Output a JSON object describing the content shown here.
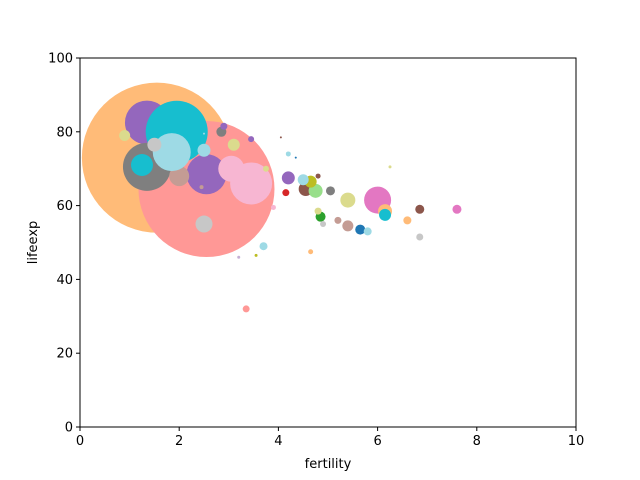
{
  "chart_data": {
    "type": "scatter",
    "xlabel": "fertility",
    "ylabel": "lifeexp",
    "xlim": [
      0,
      10
    ],
    "ylim": [
      0,
      100
    ],
    "xticks": [
      0,
      2,
      4,
      6,
      8,
      10
    ],
    "yticks": [
      0,
      20,
      40,
      60,
      80,
      100
    ],
    "xtick_labels": [
      "0",
      "2",
      "4",
      "6",
      "8",
      "10"
    ],
    "ytick_labels": [
      "0",
      "20",
      "40",
      "60",
      "80",
      "100"
    ],
    "grid": false,
    "legend": "none",
    "size_encoding": "bubble area proportional to a third variable",
    "points": [
      {
        "x": 1.55,
        "y": 73.0,
        "size": 150,
        "color": "#ffbb78"
      },
      {
        "x": 2.55,
        "y": 64.5,
        "size": 136,
        "color": "#ff9896"
      },
      {
        "x": 1.35,
        "y": 82.5,
        "size": 44,
        "color": "#9467bd"
      },
      {
        "x": 1.35,
        "y": 70.5,
        "size": 48,
        "color": "#7f7f7f"
      },
      {
        "x": 1.95,
        "y": 80.0,
        "size": 62,
        "color": "#17becf"
      },
      {
        "x": 2.55,
        "y": 68.5,
        "size": 40,
        "color": "#9467bd"
      },
      {
        "x": 2.0,
        "y": 68.0,
        "size": 20,
        "color": "#c49c94"
      },
      {
        "x": 1.85,
        "y": 74.5,
        "size": 38,
        "color": "#9edae5"
      },
      {
        "x": 1.25,
        "y": 71.0,
        "size": 22,
        "color": "#17becf"
      },
      {
        "x": 1.5,
        "y": 76.5,
        "size": 14,
        "color": "#c7c7c7"
      },
      {
        "x": 2.5,
        "y": 75.0,
        "size": 13,
        "color": "#9edae5"
      },
      {
        "x": 2.5,
        "y": 55.0,
        "size": 17,
        "color": "#c7c7c7"
      },
      {
        "x": 3.45,
        "y": 66.0,
        "size": 42,
        "color": "#f7b6d2"
      },
      {
        "x": 3.05,
        "y": 70.0,
        "size": 26,
        "color": "#f7b6d2"
      },
      {
        "x": 3.1,
        "y": 76.5,
        "size": 12,
        "color": "#dbdb8d"
      },
      {
        "x": 2.85,
        "y": 80.0,
        "size": 10,
        "color": "#7f7f7f"
      },
      {
        "x": 2.9,
        "y": 81.5,
        "size": 7,
        "color": "#9467bd"
      },
      {
        "x": 0.9,
        "y": 79.0,
        "size": 11,
        "color": "#dbdb8d"
      },
      {
        "x": 3.45,
        "y": 78.0,
        "size": 6,
        "color": "#9467bd"
      },
      {
        "x": 4.2,
        "y": 67.5,
        "size": 13,
        "color": "#9467bd"
      },
      {
        "x": 4.15,
        "y": 63.5,
        "size": 7,
        "color": "#d62728"
      },
      {
        "x": 4.55,
        "y": 64.5,
        "size": 14,
        "color": "#8c564b"
      },
      {
        "x": 4.75,
        "y": 64.0,
        "size": 14,
        "color": "#98df8a"
      },
      {
        "x": 4.65,
        "y": 66.5,
        "size": 12,
        "color": "#bcbd22"
      },
      {
        "x": 4.5,
        "y": 67.0,
        "size": 11,
        "color": "#9edae5"
      },
      {
        "x": 5.05,
        "y": 64.0,
        "size": 9,
        "color": "#7f7f7f"
      },
      {
        "x": 5.4,
        "y": 61.5,
        "size": 15,
        "color": "#dbdb8d"
      },
      {
        "x": 6.0,
        "y": 61.5,
        "size": 27,
        "color": "#e377c2"
      },
      {
        "x": 6.15,
        "y": 58.5,
        "size": 14,
        "color": "#ffbb78"
      },
      {
        "x": 6.15,
        "y": 57.5,
        "size": 12,
        "color": "#17becf"
      },
      {
        "x": 5.65,
        "y": 53.5,
        "size": 10,
        "color": "#1f77b4"
      },
      {
        "x": 5.4,
        "y": 54.5,
        "size": 11,
        "color": "#c49c94"
      },
      {
        "x": 5.8,
        "y": 53.0,
        "size": 8,
        "color": "#9edae5"
      },
      {
        "x": 4.85,
        "y": 57.0,
        "size": 10,
        "color": "#2ca02c"
      },
      {
        "x": 4.8,
        "y": 58.5,
        "size": 7,
        "color": "#dbdb8d"
      },
      {
        "x": 4.9,
        "y": 55.0,
        "size": 6,
        "color": "#c7c7c7"
      },
      {
        "x": 5.2,
        "y": 56.0,
        "size": 7,
        "color": "#c49c94"
      },
      {
        "x": 4.8,
        "y": 68.0,
        "size": 5,
        "color": "#8c564b"
      },
      {
        "x": 6.85,
        "y": 59.0,
        "size": 9,
        "color": "#8c564b"
      },
      {
        "x": 6.6,
        "y": 56.0,
        "size": 8,
        "color": "#ffbb78"
      },
      {
        "x": 6.85,
        "y": 51.5,
        "size": 7,
        "color": "#c7c7c7"
      },
      {
        "x": 7.6,
        "y": 59.0,
        "size": 9,
        "color": "#e377c2"
      },
      {
        "x": 3.7,
        "y": 49.0,
        "size": 8,
        "color": "#9edae5"
      },
      {
        "x": 3.35,
        "y": 32.0,
        "size": 7,
        "color": "#ff9896"
      },
      {
        "x": 4.65,
        "y": 47.5,
        "size": 5,
        "color": "#ffbb78"
      },
      {
        "x": 3.2,
        "y": 46.0,
        "size": 3,
        "color": "#c5b0d5"
      },
      {
        "x": 3.55,
        "y": 46.5,
        "size": 3,
        "color": "#bcbd22"
      },
      {
        "x": 3.75,
        "y": 70.0,
        "size": 6,
        "color": "#dbdb8d"
      },
      {
        "x": 4.2,
        "y": 74.0,
        "size": 5,
        "color": "#9edae5"
      },
      {
        "x": 4.35,
        "y": 73.0,
        "size": 2,
        "color": "#1f77b4"
      },
      {
        "x": 4.05,
        "y": 78.5,
        "size": 2,
        "color": "#8c564b"
      },
      {
        "x": 6.25,
        "y": 70.5,
        "size": 3,
        "color": "#dbdb8d"
      },
      {
        "x": 3.9,
        "y": 59.5,
        "size": 5,
        "color": "#f7b6d2"
      },
      {
        "x": 2.45,
        "y": 65.0,
        "size": 4,
        "color": "#c49c94"
      },
      {
        "x": 2.5,
        "y": 79.5,
        "size": 2,
        "color": "#9edae5"
      }
    ]
  }
}
